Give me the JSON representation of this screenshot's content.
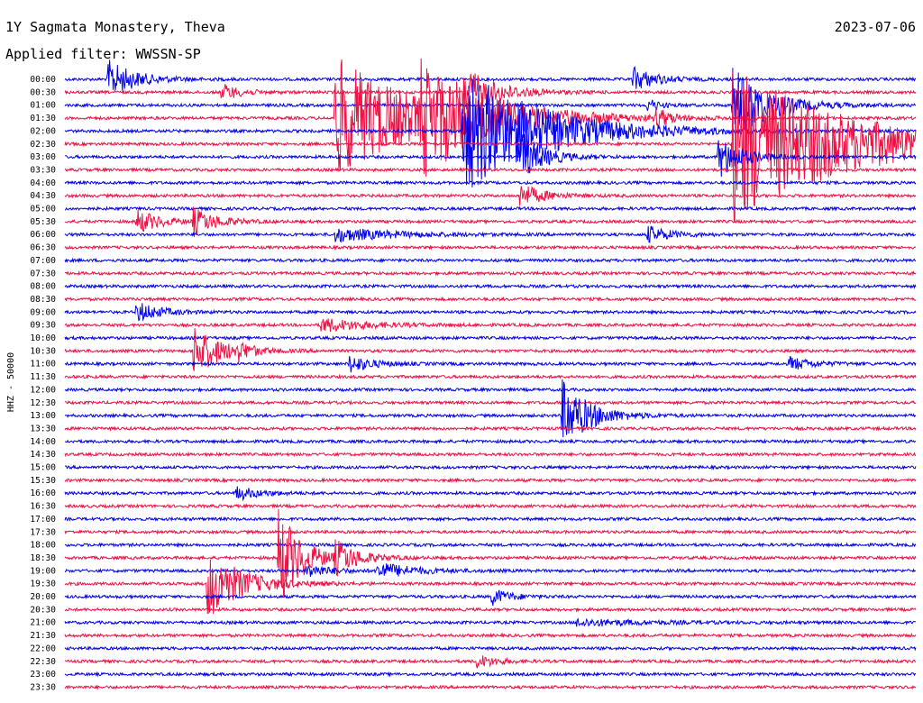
{
  "header": {
    "title": "1Y Sagmata Monastery, Theva",
    "date": "2023-07-06",
    "filter": "Applied filter: WWSSN-SP"
  },
  "chart_data": {
    "type": "line",
    "subtype": "helicorder",
    "ylabel": "HHZ - 50000",
    "rows": [
      "00:00",
      "00:30",
      "01:00",
      "01:30",
      "02:00",
      "02:30",
      "03:00",
      "03:30",
      "04:00",
      "04:30",
      "05:00",
      "05:30",
      "06:00",
      "06:30",
      "07:00",
      "07:30",
      "08:00",
      "08:30",
      "09:00",
      "09:30",
      "10:00",
      "10:30",
      "11:00",
      "11:30",
      "12:00",
      "12:30",
      "13:00",
      "13:30",
      "14:00",
      "14:30",
      "15:00",
      "15:30",
      "16:00",
      "16:30",
      "17:00",
      "17:30",
      "18:00",
      "18:30",
      "19:00",
      "19:30",
      "20:00",
      "20:30",
      "21:00",
      "21:30",
      "22:00",
      "22:30",
      "23:00",
      "23:30"
    ],
    "trace_colors": [
      "#0000ee",
      "#ee1144"
    ],
    "events": [
      {
        "row": 0,
        "minute": 1.5,
        "amp": 22,
        "dur": 1.2
      },
      {
        "row": 0,
        "minute": 20.0,
        "amp": 14,
        "dur": 1.0
      },
      {
        "row": 1,
        "minute": 5.5,
        "amp": 10,
        "dur": 0.8
      },
      {
        "row": 1,
        "minute": 14.0,
        "amp": 30,
        "dur": 1.4
      },
      {
        "row": 2,
        "minute": 20.5,
        "amp": 8,
        "dur": 0.5
      },
      {
        "row": 3,
        "minute": 20.8,
        "amp": 14,
        "dur": 0.7
      },
      {
        "row": 2,
        "minute": 23.5,
        "amp": 45,
        "dur": 1.5
      },
      {
        "row": 3,
        "minute": 9.5,
        "amp": 70,
        "dur": 3.5
      },
      {
        "row": 3,
        "minute": 12.5,
        "amp": 70,
        "dur": 3.0
      },
      {
        "row": 4,
        "minute": 14.0,
        "amp": 70,
        "dur": 3.5
      },
      {
        "row": 5,
        "minute": 23.5,
        "amp": 90,
        "dur": 5.0
      },
      {
        "row": 6,
        "minute": 16.0,
        "amp": 30,
        "dur": 1.0
      },
      {
        "row": 6,
        "minute": 23.0,
        "amp": 25,
        "dur": 1.0
      },
      {
        "row": 9,
        "minute": 16.0,
        "amp": 14,
        "dur": 1.0
      },
      {
        "row": 11,
        "minute": 2.5,
        "amp": 14,
        "dur": 1.0
      },
      {
        "row": 11,
        "minute": 4.5,
        "amp": 16,
        "dur": 1.0
      },
      {
        "row": 12,
        "minute": 9.5,
        "amp": 8,
        "dur": 2.5
      },
      {
        "row": 12,
        "minute": 20.5,
        "amp": 10,
        "dur": 1.0
      },
      {
        "row": 18,
        "minute": 2.5,
        "amp": 12,
        "dur": 1.0
      },
      {
        "row": 19,
        "minute": 9.0,
        "amp": 8,
        "dur": 2.0
      },
      {
        "row": 21,
        "minute": 4.5,
        "amp": 30,
        "dur": 1.2
      },
      {
        "row": 21,
        "minute": 6.0,
        "amp": 14,
        "dur": 0.8
      },
      {
        "row": 22,
        "minute": 10.0,
        "amp": 10,
        "dur": 1.0
      },
      {
        "row": 22,
        "minute": 25.5,
        "amp": 8,
        "dur": 1.0
      },
      {
        "row": 26,
        "minute": 17.5,
        "amp": 40,
        "dur": 1.2
      },
      {
        "row": 32,
        "minute": 6.0,
        "amp": 8,
        "dur": 1.0
      },
      {
        "row": 37,
        "minute": 7.5,
        "amp": 60,
        "dur": 1.0
      },
      {
        "row": 37,
        "minute": 9.5,
        "amp": 22,
        "dur": 1.0
      },
      {
        "row": 38,
        "minute": 8.5,
        "amp": 8,
        "dur": 1.0
      },
      {
        "row": 38,
        "minute": 11.0,
        "amp": 10,
        "dur": 1.5
      },
      {
        "row": 39,
        "minute": 5.0,
        "amp": 40,
        "dur": 1.5
      },
      {
        "row": 40,
        "minute": 15.0,
        "amp": 10,
        "dur": 0.8
      },
      {
        "row": 42,
        "minute": 18.0,
        "amp": 4,
        "dur": 3.0
      },
      {
        "row": 45,
        "minute": 14.5,
        "amp": 8,
        "dur": 0.8
      }
    ]
  }
}
